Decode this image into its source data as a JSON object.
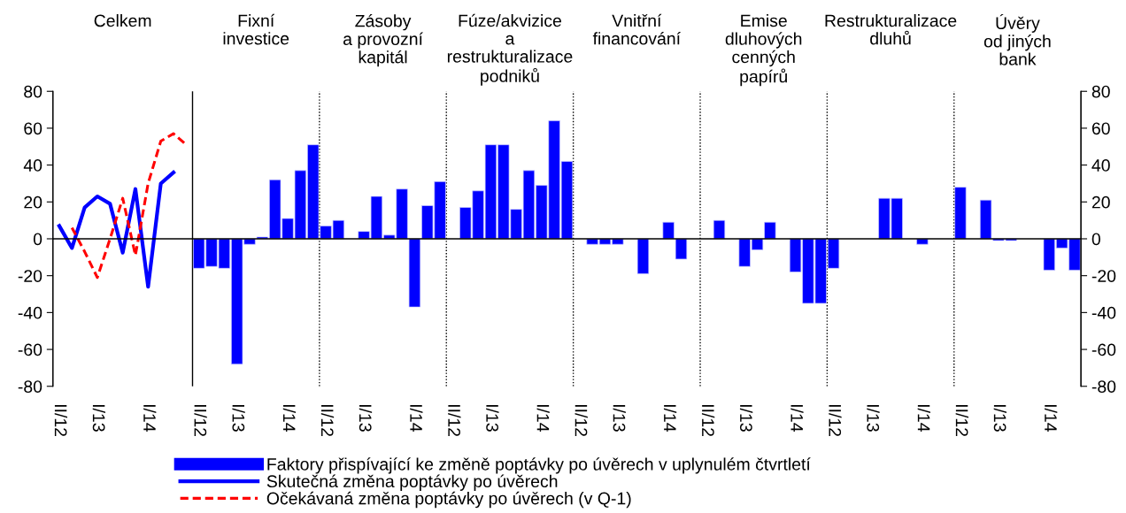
{
  "chart_data": {
    "type": "bar",
    "categories": [
      "II/12",
      null,
      null,
      "I/13",
      null,
      null,
      null,
      "I/14",
      null,
      null,
      null,
      "II/12",
      null,
      null,
      "I/13",
      null,
      null,
      null,
      "I/14",
      null,
      null,
      "II/12",
      null,
      null,
      "I/13",
      null,
      null,
      null,
      "I/14",
      null,
      null,
      "II/12",
      null,
      null,
      "I/13",
      null,
      null,
      null,
      "I/14",
      null,
      null,
      "II/12",
      null,
      null,
      "I/13",
      null,
      null,
      null,
      "I/14",
      null,
      null,
      "II/12",
      null,
      null,
      "I/13",
      null,
      null,
      null,
      "I/14",
      null,
      null,
      "II/12",
      null,
      null,
      "I/13",
      null,
      null,
      null,
      "I/14",
      null,
      null,
      "II/12",
      null,
      null,
      "I/13",
      null,
      null,
      null,
      "I/14",
      null,
      null
    ],
    "series": [
      {
        "name": "Faktory přispívající ke změně poptávky po úvěrech v uplynulém čtvrtletí",
        "color": "#0000ff",
        "values": [
          null,
          null,
          null,
          null,
          null,
          null,
          null,
          null,
          null,
          null,
          null,
          -16,
          -15,
          -16,
          -68,
          -3,
          1,
          32,
          11,
          37,
          51,
          7,
          10,
          null,
          4,
          23,
          2,
          27,
          -37,
          18,
          31,
          null,
          17,
          26,
          51,
          51,
          16,
          37,
          29,
          64,
          42,
          null,
          -3,
          -3,
          -3,
          null,
          -19,
          null,
          9,
          -11,
          null,
          null,
          10,
          null,
          -15,
          -6,
          9,
          null,
          -18,
          -35,
          -35,
          -16,
          null,
          null,
          null,
          22,
          22,
          null,
          -3,
          null,
          null,
          28,
          null,
          21,
          -1,
          -1,
          null,
          null,
          -17,
          -5,
          -17
        ]
      },
      {
        "name": "Skutečná změna poptávky po úvěrech",
        "type": "line",
        "color": "#0000ff",
        "line_style": "solid",
        "values": [
          7,
          -5,
          17,
          23,
          19,
          -7.5,
          27,
          -26,
          30,
          36,
          null,
          null,
          null,
          null,
          null,
          null,
          null,
          null,
          null,
          null,
          null,
          null,
          null,
          null,
          null,
          null,
          null,
          null,
          null,
          null,
          null,
          null,
          null,
          null,
          null,
          null,
          null,
          null,
          null,
          null,
          null,
          null,
          null,
          null,
          null,
          null,
          null,
          null,
          null,
          null,
          null,
          null,
          null,
          null,
          null,
          null,
          null,
          null,
          null,
          null,
          null,
          null,
          null,
          null,
          null,
          null,
          null,
          null,
          null,
          null,
          null,
          null,
          null,
          null,
          null,
          null,
          null,
          null,
          null,
          null,
          null
        ]
      },
      {
        "name": "Očekávaná změna poptávky po úvěrech (v Q-1)",
        "type": "line",
        "color": "#ff0000",
        "line_style": "dashed",
        "values": [
          null,
          6,
          -7,
          -21,
          0,
          22,
          -9,
          30,
          53,
          57,
          51,
          null,
          null,
          null,
          null,
          null,
          null,
          null,
          null,
          null,
          null,
          null,
          null,
          null,
          null,
          null,
          null,
          null,
          null,
          null,
          null,
          null,
          null,
          null,
          null,
          null,
          null,
          null,
          null,
          null,
          null,
          null,
          null,
          null,
          null,
          null,
          null,
          null,
          null,
          null,
          null,
          null,
          null,
          null,
          null,
          null,
          null,
          null,
          null,
          null,
          null,
          null,
          null,
          null,
          null,
          null,
          null,
          null,
          null,
          null,
          null,
          null,
          null,
          null,
          null,
          null,
          null,
          null,
          null,
          null,
          null
        ]
      }
    ],
    "ylim": [
      -80,
      80
    ],
    "yticks": [
      -80,
      -60,
      -40,
      -20,
      0,
      20,
      40,
      60,
      80
    ],
    "y2lim": [
      -80,
      80
    ],
    "y2ticks": [
      -80,
      -60,
      -40,
      -20,
      0,
      20,
      40,
      60,
      80
    ],
    "annotations": [
      "Celkem",
      "Fixní\ninvestice",
      "Zásoby\na provozní\nkapitál",
      "Fúze/akvizice\na\nrestrukturalizace\npodniků",
      "Vnitřní\nfinancování",
      "Emise\ndluhových\ncenných\npapírů",
      "Restrukturalizace\ndluhů",
      "Úvěry\nod jiných\nbank"
    ],
    "legend": "bottom",
    "marker": "none"
  }
}
